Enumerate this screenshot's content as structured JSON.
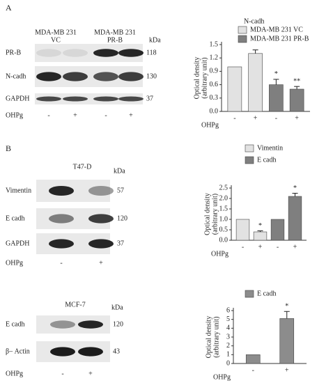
{
  "blots": [
    {
      "label": "A",
      "columns": [
        [
          "MDA-MB 231",
          "VC"
        ],
        [
          "MDA-MB 231",
          "PR-B"
        ]
      ],
      "unit": "kDa",
      "rows": [
        {
          "name": "PR-B",
          "kda": 118
        },
        {
          "name": "N-cadh",
          "kda": 130
        },
        {
          "name": "GAPDH",
          "kda": 37
        }
      ],
      "treatment": "OHPg",
      "lanes": [
        "-",
        "+",
        "-",
        "+"
      ]
    },
    {
      "label": "B",
      "columns": [
        [
          "T47-D"
        ]
      ],
      "unit": "kDa",
      "rows": [
        {
          "name": "Vimentin",
          "kda": 57
        },
        {
          "name": "E cadh",
          "kda": 120
        },
        {
          "name": "GAPDH",
          "kda": 37
        }
      ],
      "treatment": "OHPg",
      "lanes": [
        "-",
        "+"
      ]
    },
    {
      "columns": [
        [
          "MCF-7"
        ]
      ],
      "unit": "kDa",
      "rows": [
        {
          "name": "E cadh",
          "kda": 120
        },
        {
          "name": "β– Actin",
          "kda": 43
        }
      ],
      "treatment": "OHPg",
      "lanes": [
        "-",
        "+"
      ]
    }
  ],
  "chart_data": [
    {
      "type": "bar",
      "title": "N-cadh",
      "y_label": [
        "Optical density",
        "(arbitrary unit)"
      ],
      "x_label": "OHPg",
      "categories": [
        "-",
        "+",
        "-",
        "+"
      ],
      "series": [
        {
          "name": "MDA-MB 231 VC",
          "color": "#e2e2e2",
          "values": [
            1.0,
            1.3,
            null,
            null
          ],
          "errors": [
            null,
            0.08,
            null,
            null
          ],
          "significance": [
            null,
            null,
            null,
            null
          ]
        },
        {
          "name": "MDA-MB 231 PR-B",
          "color": "#7f7f7f",
          "values": [
            null,
            null,
            0.6,
            0.5
          ],
          "errors": [
            null,
            null,
            0.12,
            0.06
          ],
          "significance": [
            null,
            null,
            "*",
            "**"
          ]
        }
      ],
      "ylim": [
        0,
        1.5
      ],
      "yticks": [
        {
          "value": 0,
          "label": "0.0"
        },
        0.3,
        0.6,
        0.9,
        1.2,
        1.5
      ]
    },
    {
      "type": "bar",
      "y_label": [
        "Optical density",
        "(arbitrary unit)"
      ],
      "x_label": "OHPg",
      "categories": [
        "-",
        "+",
        "-",
        "+"
      ],
      "series": [
        {
          "name": "Vimentin",
          "color": "#e2e2e2",
          "values": [
            1.0,
            0.4,
            null,
            null
          ],
          "errors": [
            null,
            0.05,
            null,
            null
          ],
          "significance": [
            null,
            "*",
            null,
            null
          ]
        },
        {
          "name": "E cadh",
          "color": "#7f7f7f",
          "values": [
            null,
            null,
            1.0,
            2.1
          ],
          "errors": [
            null,
            null,
            null,
            0.15
          ],
          "significance": [
            null,
            null,
            null,
            "*"
          ]
        }
      ],
      "ylim": [
        0,
        2.5
      ],
      "yticks": [
        {
          "value": 0,
          "label": "0.0"
        },
        0.5,
        {
          "value": 1,
          "label": "1.0"
        },
        1.5,
        {
          "value": 2,
          "label": "2.0"
        },
        2.5
      ]
    },
    {
      "type": "bar",
      "y_label": [
        "Optical density",
        "(arbitrary unit)"
      ],
      "x_label": "OHPg",
      "categories": [
        "-",
        "+"
      ],
      "series": [
        {
          "name": "E cadh",
          "color": "#8c8c8c",
          "values": [
            1,
            5.1
          ],
          "errors": [
            null,
            0.8
          ],
          "significance": [
            null,
            "*"
          ]
        }
      ],
      "ylim": [
        0,
        6
      ],
      "yticks": [
        0,
        1,
        2,
        3,
        4,
        5,
        6
      ]
    }
  ]
}
